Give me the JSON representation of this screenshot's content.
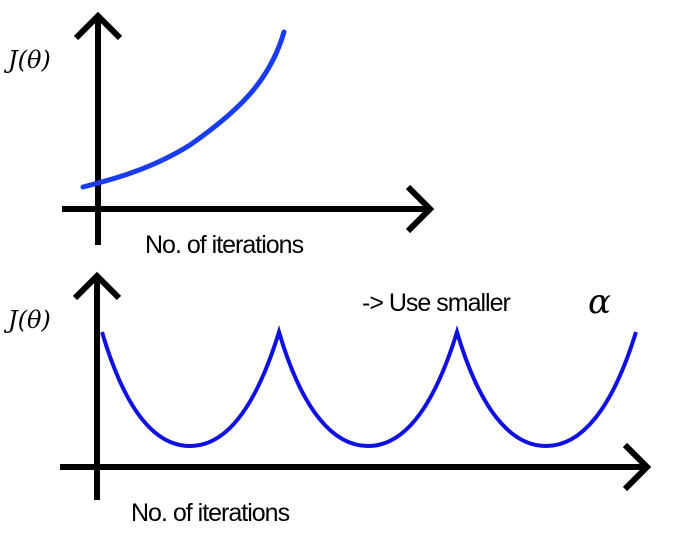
{
  "panels": [
    {
      "ylabel": "J(θ)",
      "xlabel": "No. of iterations",
      "curve_color": "#1a3cf0",
      "shape": "increasing"
    },
    {
      "ylabel": "J(θ)",
      "xlabel": "No. of iterations",
      "curve_color": "#1010e0",
      "shape": "oscillating",
      "annotation": "-> Use smaller",
      "annotation_symbol": "α"
    }
  ]
}
